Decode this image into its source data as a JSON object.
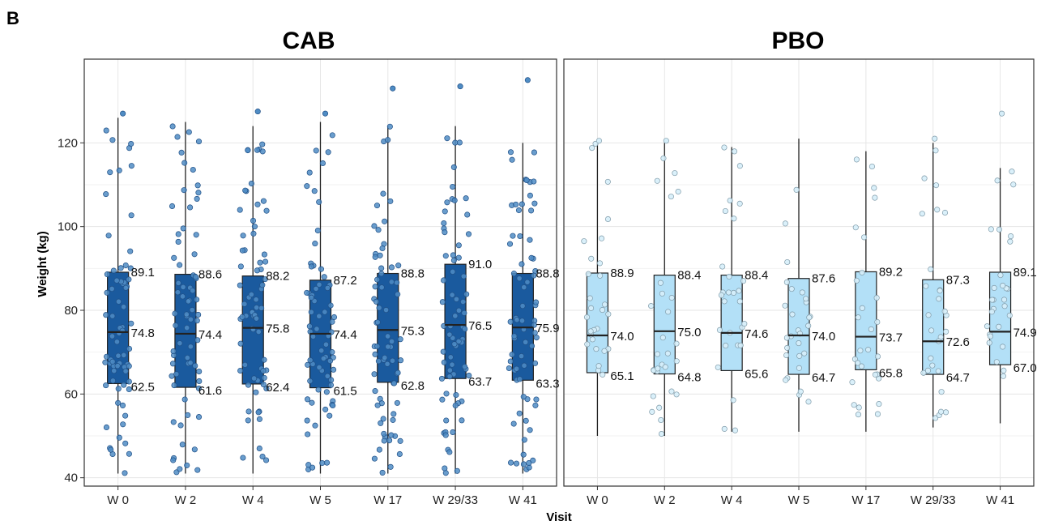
{
  "figure": {
    "panel_letter": "B"
  },
  "chart_data": [
    {
      "type": "box",
      "title": "CAB",
      "xlabel": "Visit",
      "ylabel": "Weight (kg)",
      "ylim": [
        38,
        140
      ],
      "yticks": [
        40,
        60,
        80,
        100,
        120
      ],
      "grid": true,
      "color": "#1a5a9e",
      "point_color": "#4f8cc4",
      "categories": [
        "W 0",
        "W 2",
        "W 4",
        "W 5",
        "W 17",
        "W 29/33",
        "W 41"
      ],
      "q1_labels": [
        "62.5",
        "61.6",
        "62.4",
        "61.5",
        "62.8",
        "63.7",
        "63.3"
      ],
      "median_labels": [
        "74.8",
        "74.4",
        "75.8",
        "74.4",
        "75.3",
        "76.5",
        "75.9"
      ],
      "q3_labels": [
        "89.1",
        "88.6",
        "88.2",
        "87.2",
        "88.8",
        "91.0",
        "88.8"
      ],
      "boxes": [
        {
          "q1": 62.5,
          "median": 74.8,
          "q3": 89.1,
          "whisker_low": 41,
          "whisker_high": 126,
          "max": 127
        },
        {
          "q1": 61.6,
          "median": 74.4,
          "q3": 88.6,
          "whisker_low": 41,
          "whisker_high": 125,
          "max": 125
        },
        {
          "q1": 62.4,
          "median": 75.8,
          "q3": 88.2,
          "whisker_low": 41,
          "whisker_high": 124,
          "max": 127.5
        },
        {
          "q1": 61.5,
          "median": 74.4,
          "q3": 87.2,
          "whisker_low": 41,
          "whisker_high": 125,
          "max": 127
        },
        {
          "q1": 62.8,
          "median": 75.3,
          "q3": 88.8,
          "whisker_low": 41,
          "whisker_high": 124,
          "max": 133
        },
        {
          "q1": 63.7,
          "median": 76.5,
          "q3": 91.0,
          "whisker_low": 41,
          "whisker_high": 124,
          "max": 133.5
        },
        {
          "q1": 63.3,
          "median": 75.9,
          "q3": 88.8,
          "whisker_low": 41,
          "whisker_high": 120,
          "max": 135
        }
      ]
    },
    {
      "type": "box",
      "title": "PBO",
      "xlabel": "Visit",
      "ylabel": "Weight (kg)",
      "ylim": [
        38,
        140
      ],
      "yticks": [
        40,
        60,
        80,
        100,
        120
      ],
      "grid": true,
      "color": "#b3e0f7",
      "point_color": "#d6eef9",
      "categories": [
        "W 0",
        "W 2",
        "W 4",
        "W 5",
        "W 17",
        "W 29/33",
        "W 41"
      ],
      "q1_labels": [
        "65.1",
        "64.8",
        "65.6",
        "64.7",
        "65.8",
        "64.7",
        "67.0"
      ],
      "median_labels": [
        "74.0",
        "75.0",
        "74.6",
        "74.0",
        "73.7",
        "72.6",
        "74.9"
      ],
      "q3_labels": [
        "88.9",
        "88.4",
        "88.4",
        "87.6",
        "89.2",
        "87.3",
        "89.1"
      ],
      "boxes": [
        {
          "q1": 65.1,
          "median": 74.0,
          "q3": 88.9,
          "whisker_low": 50,
          "whisker_high": 120,
          "max": 120.5
        },
        {
          "q1": 64.8,
          "median": 75.0,
          "q3": 88.4,
          "whisker_low": 50,
          "whisker_high": 120,
          "max": 120.5
        },
        {
          "q1": 65.6,
          "median": 74.6,
          "q3": 88.4,
          "whisker_low": 51,
          "whisker_high": 119,
          "max": 119
        },
        {
          "q1": 64.7,
          "median": 74.0,
          "q3": 87.6,
          "whisker_low": 51,
          "whisker_high": 121,
          "max": 121
        },
        {
          "q1": 65.8,
          "median": 73.7,
          "q3": 89.2,
          "whisker_low": 51,
          "whisker_high": 118,
          "max": 118
        },
        {
          "q1": 64.7,
          "median": 72.6,
          "q3": 87.3,
          "whisker_low": 52,
          "whisker_high": 120,
          "max": 121
        },
        {
          "q1": 67.0,
          "median": 74.9,
          "q3": 89.1,
          "whisker_low": 53,
          "whisker_high": 114,
          "max": 127
        }
      ]
    }
  ]
}
